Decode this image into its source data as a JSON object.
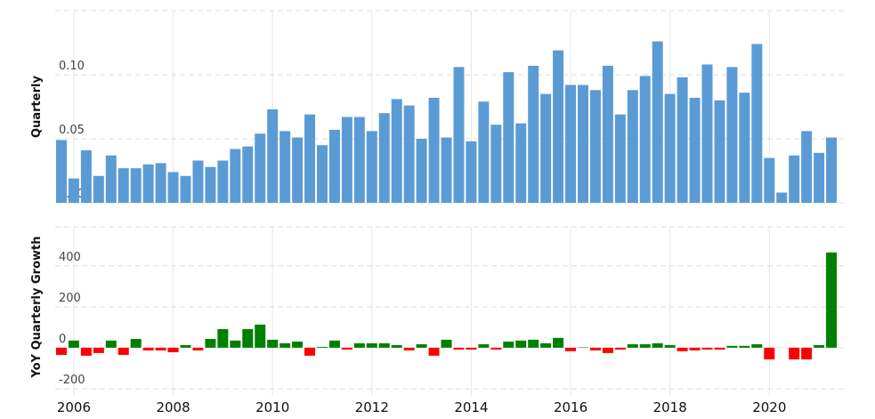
{
  "chart_data": [
    {
      "type": "bar",
      "y_label": "Quarterly",
      "color": "#5b9bd5",
      "x": [
        2005.75,
        2006,
        2006.25,
        2006.5,
        2006.75,
        2007,
        2007.25,
        2007.5,
        2007.75,
        2008,
        2008.25,
        2008.5,
        2008.75,
        2009,
        2009.25,
        2009.5,
        2009.75,
        2010,
        2010.25,
        2010.5,
        2010.75,
        2011,
        2011.25,
        2011.5,
        2011.75,
        2012,
        2012.25,
        2012.5,
        2012.75,
        2013,
        2013.25,
        2013.5,
        2013.75,
        2014,
        2014.25,
        2014.5,
        2014.75,
        2015,
        2015.25,
        2015.5,
        2015.75,
        2016,
        2016.25,
        2016.5,
        2016.75,
        2017,
        2017.25,
        2017.5,
        2017.75,
        2018,
        2018.25,
        2018.5,
        2018.75,
        2019,
        2019.25,
        2019.5,
        2019.75,
        2020,
        2020.25,
        2020.5,
        2020.75,
        2021,
        2021.25
      ],
      "values": [
        0.049,
        0.019,
        0.041,
        0.021,
        0.037,
        0.027,
        0.027,
        0.03,
        0.031,
        0.024,
        0.021,
        0.033,
        0.028,
        0.033,
        0.042,
        0.044,
        0.054,
        0.073,
        0.056,
        0.051,
        0.069,
        0.045,
        0.057,
        0.067,
        0.067,
        0.056,
        0.07,
        0.081,
        0.076,
        0.05,
        0.082,
        0.051,
        0.106,
        0.048,
        0.079,
        0.061,
        0.102,
        0.062,
        0.107,
        0.085,
        0.119,
        0.092,
        0.092,
        0.088,
        0.107,
        0.069,
        0.088,
        0.099,
        0.126,
        0.085,
        0.098,
        0.082,
        0.108,
        0.08,
        0.106,
        0.086,
        0.124,
        0.035,
        0.008,
        0.037,
        0.056,
        0.039,
        0.051
      ],
      "xlim": [
        2005.625,
        2021.5
      ],
      "xticks": [
        2006,
        2008,
        2010,
        2012,
        2014,
        2016,
        2018,
        2020
      ],
      "ylim": [
        0,
        0.15
      ],
      "yticks": [
        {
          "value": 0,
          "label": "0.00"
        },
        {
          "value": 0.05,
          "label": "0.05"
        },
        {
          "value": 0.1,
          "label": "0.10"
        }
      ],
      "grid": true
    },
    {
      "type": "bar",
      "y_label": "YoY Quarterly Growth",
      "positive_color": "#008000",
      "negative_color": "#ff0000",
      "x": [
        2005.75,
        2006,
        2006.25,
        2006.5,
        2006.75,
        2007,
        2007.25,
        2007.5,
        2007.75,
        2008,
        2008.25,
        2008.5,
        2008.75,
        2009,
        2009.25,
        2009.5,
        2009.75,
        2010,
        2010.25,
        2010.5,
        2010.75,
        2011,
        2011.25,
        2011.5,
        2011.75,
        2012,
        2012.25,
        2012.5,
        2012.75,
        2013,
        2013.25,
        2013.5,
        2013.75,
        2014,
        2014.25,
        2014.5,
        2014.75,
        2015,
        2015.25,
        2015.5,
        2015.75,
        2016,
        2016.25,
        2016.5,
        2016.75,
        2017,
        2017.25,
        2017.5,
        2017.75,
        2018,
        2018.25,
        2018.5,
        2018.75,
        2019,
        2019.25,
        2019.5,
        2019.75,
        2020,
        2020.25,
        2020.5,
        2020.75,
        2021,
        2021.25
      ],
      "values": [
        -35,
        35,
        -39,
        -26,
        35,
        -35,
        43,
        -13,
        -13,
        -22,
        13,
        -13,
        43,
        91,
        35,
        91,
        113,
        39,
        22,
        30,
        -39,
        4,
        35,
        -9,
        22,
        22,
        22,
        13,
        -13,
        17,
        -39,
        39,
        -9,
        -9,
        17,
        -9,
        30,
        35,
        39,
        22,
        48,
        -17,
        2,
        -13,
        -26,
        -9,
        17,
        17,
        22,
        13,
        -17,
        -13,
        -9,
        -9,
        9,
        9,
        17,
        -57,
        null,
        -57,
        -57,
        13,
        465
      ],
      "xlim": [
        2005.625,
        2021.5
      ],
      "xticks": [
        2006,
        2008,
        2010,
        2012,
        2014,
        2016,
        2018,
        2020
      ],
      "ylim": [
        -235,
        590
      ],
      "yticks": [
        -200,
        0,
        200,
        400
      ],
      "grid": true
    }
  ]
}
